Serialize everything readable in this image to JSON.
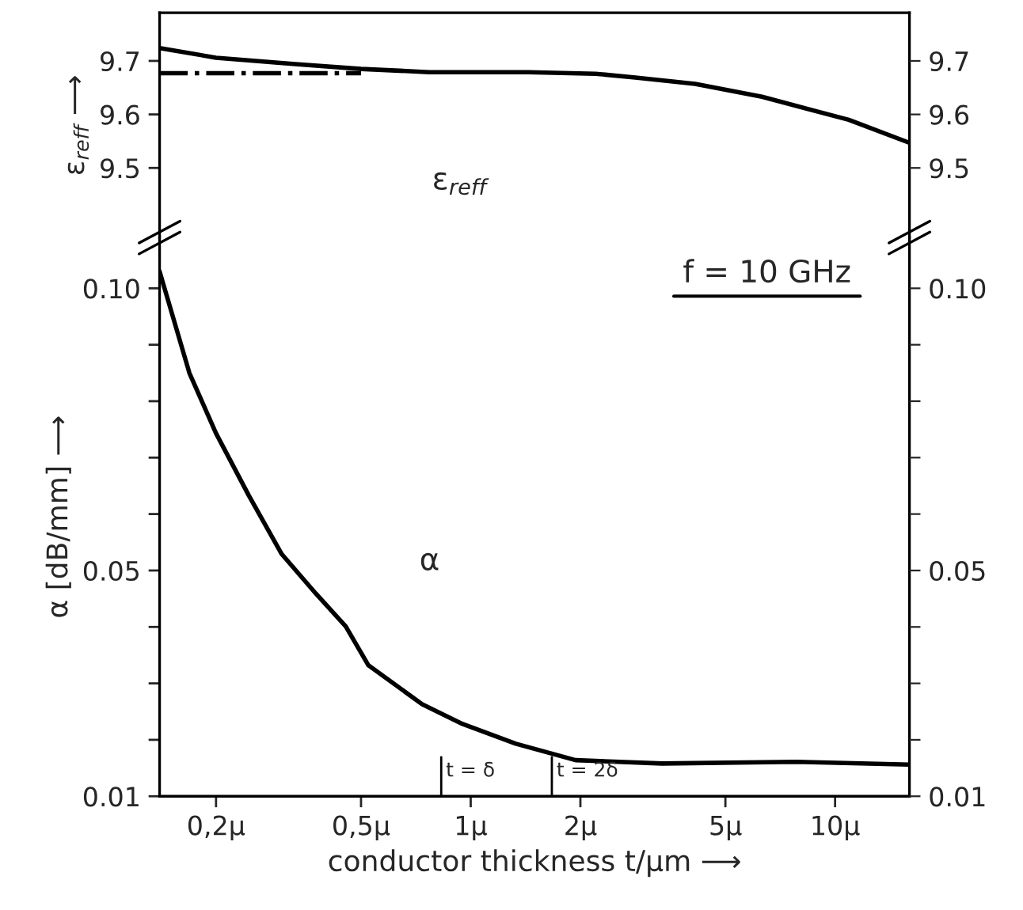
{
  "chart_data": [
    {
      "type": "line",
      "ylabel": "ε$_{reff}$ ⟶",
      "xlim": [
        0.14,
        16
      ],
      "log": "x",
      "ylim": [
        9.37,
        9.79
      ],
      "yticks": [
        9.5,
        9.6,
        9.7
      ],
      "y2lim": [
        9.37,
        9.79
      ],
      "y2ticks": [
        9.5,
        9.6,
        9.7
      ],
      "tick_labels": "y",
      "grid": false,
      "legend": false,
      "series": [
        {
          "color": "#000000",
          "line_style": "solid",
          "x": [
            0.14,
            0.2,
            0.33,
            0.5,
            0.77,
            1.44,
            2.2,
            2.83,
            4.13,
            6.3,
            10.9,
            16
          ],
          "values": [
            9.724,
            9.706,
            9.694,
            9.685,
            9.679,
            9.679,
            9.676,
            9.669,
            9.657,
            9.633,
            9.59,
            9.547
          ]
        },
        {
          "color": "#000000",
          "line_style": "dashdot",
          "x": [
            0.14,
            0.5
          ],
          "values": [
            9.677,
            9.677
          ]
        }
      ],
      "annotations": [
        "ε$_{reff}$"
      ]
    },
    {
      "type": "line",
      "xlabel": "conductor thickness t/µm ⟶",
      "ylabel": "α [dB/mm] ⟶",
      "xlim": [
        0.14,
        16
      ],
      "log": "x",
      "xticks": [
        {
          "value": 0.2,
          "label": "0,2µ"
        },
        {
          "value": 0.5,
          "label": "0,5µ"
        },
        {
          "value": 1,
          "label": "1µ"
        },
        {
          "value": 2,
          "label": "2µ"
        },
        {
          "value": 5,
          "label": "5µ"
        },
        {
          "value": 10,
          "label": "10µ"
        }
      ],
      "ylim": [
        0.01,
        0.109
      ],
      "yticks": [
        0.01,
        {
          "value": 0.02,
          "label": null
        },
        {
          "value": 0.03,
          "label": null
        },
        {
          "value": 0.04,
          "label": null
        },
        0.05,
        {
          "value": 0.06,
          "label": null
        },
        {
          "value": 0.07,
          "label": null
        },
        {
          "value": 0.08,
          "label": null
        },
        {
          "value": 0.09,
          "label": null
        },
        {
          "value": 0.1,
          "label": "0.10"
        }
      ],
      "y2lim": [
        0.01,
        0.109
      ],
      "y2ticks": [
        0.01,
        {
          "value": 0.02,
          "label": null
        },
        {
          "value": 0.03,
          "label": null
        },
        {
          "value": 0.04,
          "label": null
        },
        0.05,
        {
          "value": 0.06,
          "label": null
        },
        {
          "value": 0.07,
          "label": null
        },
        {
          "value": 0.08,
          "label": null
        },
        {
          "value": 0.09,
          "label": null
        },
        {
          "value": 0.1,
          "label": "0.10"
        }
      ],
      "grid": false,
      "legend": false,
      "series": [
        {
          "color": "#000000",
          "line_style": "solid",
          "x": [
            0.14,
            0.169,
            0.2,
            0.246,
            0.303,
            0.376,
            0.454,
            0.524,
            0.736,
            0.95,
            1.33,
            1.94,
            3.35,
            7.8,
            16
          ],
          "values": [
            0.103,
            0.085,
            0.0743,
            0.0633,
            0.0529,
            0.0459,
            0.0401,
            0.0332,
            0.0263,
            0.0228,
            0.0193,
            0.0164,
            0.0158,
            0.0161,
            0.0156
          ]
        }
      ],
      "ref_lines": [
        {
          "axis": "x",
          "value": 0.83,
          "label": "t = δ",
          "color": "#000000"
        },
        {
          "axis": "x",
          "value": 1.67,
          "label": "t = 2δ",
          "color": "#000000"
        }
      ],
      "annotations": [
        "f = 10 GHz",
        "α"
      ]
    }
  ]
}
